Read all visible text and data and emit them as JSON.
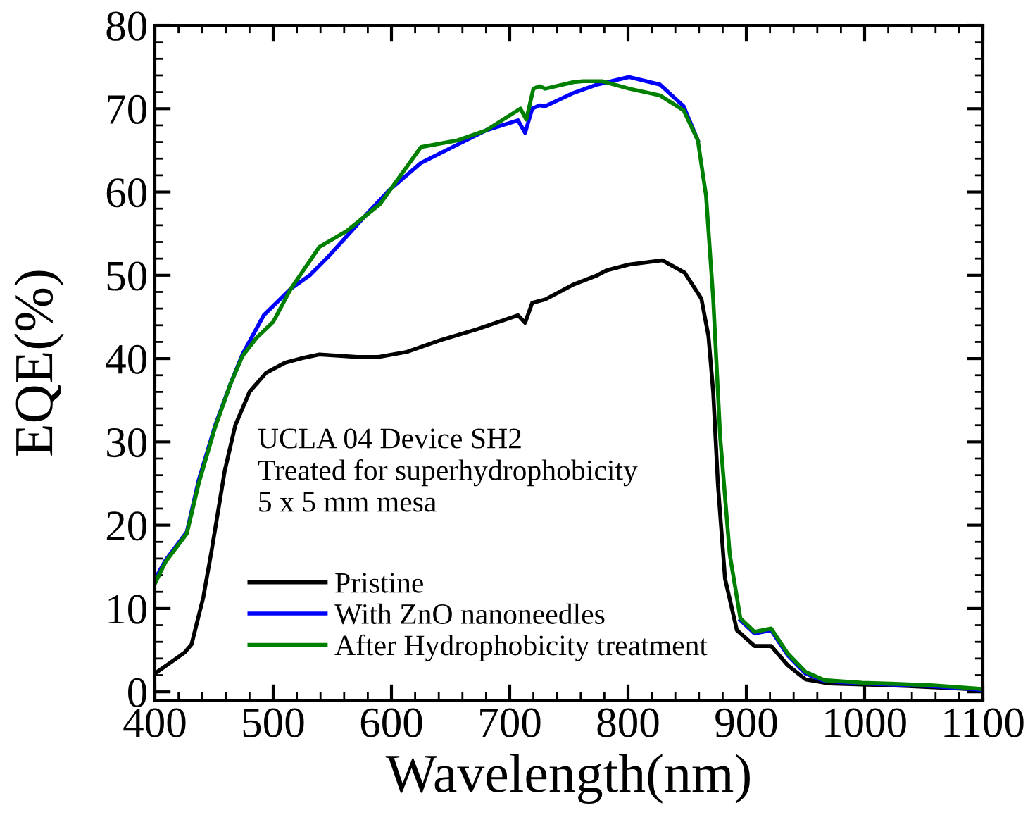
{
  "chart_data": {
    "type": "line",
    "xlabel": "Wavelength(nm)",
    "ylabel": "EQE(%)",
    "xlim": [
      400,
      1100
    ],
    "xticks": [
      400,
      500,
      600,
      700,
      800,
      900,
      1000,
      1100
    ],
    "ylim": [
      -1,
      80
    ],
    "yticks": [
      0,
      10,
      20,
      30,
      40,
      50,
      60,
      70,
      80
    ],
    "grid": false,
    "legend": "bottom left",
    "marker": "none",
    "line_style": "solid",
    "annotations": [
      "UCLA 04 Device SH2",
      "Treated for superhydrophobicity",
      "5 x 5 mm mesa"
    ],
    "series": [
      {
        "name": "Pristine",
        "color": "#000000",
        "x": [
          400,
          425,
          431,
          441,
          448,
          459,
          468,
          480,
          494,
          510,
          523,
          539,
          571,
          589,
          613,
          641,
          672,
          707,
          713,
          719,
          730,
          754,
          774,
          782,
          801,
          829,
          848,
          862,
          868,
          872,
          876,
          882,
          892,
          907,
          921,
          935,
          950,
          970,
          1037,
          1095,
          1100
        ],
        "values": [
          2.2,
          4.7,
          5.7,
          11.4,
          17,
          26.5,
          32,
          36,
          38.3,
          39.5,
          40,
          40.5,
          40.2,
          40.2,
          40.8,
          42.2,
          43.5,
          45.2,
          44.3,
          46.7,
          47.1,
          48.9,
          50,
          50.6,
          51.3,
          51.8,
          50.3,
          47.2,
          42.7,
          36,
          24.9,
          13.6,
          7.4,
          5.5,
          5.5,
          3.2,
          1.5,
          1,
          0.7,
          0.3,
          0.2
        ]
      },
      {
        "name": "With ZnO nanoneedles",
        "color": "#0000ff",
        "x": [
          400,
          409,
          427,
          437,
          451,
          464,
          474,
          492,
          515,
          531,
          547,
          582,
          598,
          625,
          656,
          680,
          707,
          713,
          719,
          725,
          730,
          754,
          774,
          801,
          827,
          847,
          859,
          866,
          872,
          878,
          886,
          895,
          907,
          921,
          935,
          950,
          966,
          998,
          1056,
          1095,
          1100
        ],
        "values": [
          13.5,
          15.8,
          19.2,
          25.4,
          32,
          37,
          40.5,
          45.2,
          48.4,
          50,
          52.3,
          57.8,
          60.2,
          63.5,
          65.7,
          67.4,
          68.6,
          67.1,
          70,
          70.4,
          70.3,
          71.9,
          72.9,
          73.8,
          72.9,
          70.3,
          66.2,
          null,
          null,
          null,
          null,
          8.6,
          7,
          7.4,
          4.4,
          2.2,
          1.3,
          1,
          0.7,
          0.3,
          0.2
        ]
      },
      {
        "name": "After Hydrophobicity treatment",
        "color": "#008000",
        "x": [
          400,
          409,
          427,
          437,
          451,
          464,
          474,
          486,
          500,
          515,
          539,
          562,
          590,
          625,
          656,
          680,
          709,
          714,
          720,
          725,
          730,
          754,
          762,
          778,
          801,
          827,
          847,
          859,
          866,
          872,
          878,
          886,
          895,
          907,
          921,
          935,
          950,
          966,
          998,
          1056,
          1095,
          1100
        ],
        "values": [
          13,
          15.6,
          19,
          25,
          31.8,
          37,
          40.3,
          42.5,
          44.4,
          48.4,
          53.4,
          55.3,
          58.5,
          65.4,
          66.2,
          67.4,
          70,
          68.7,
          72.4,
          72.7,
          72.4,
          73.2,
          73.3,
          73.3,
          72.4,
          71.6,
          69.8,
          66.2,
          59.5,
          47.2,
          30.4,
          16.5,
          8.8,
          7.2,
          7.6,
          4.6,
          2.4,
          1.4,
          1.1,
          0.8,
          0.4,
          0.3
        ]
      }
    ]
  }
}
